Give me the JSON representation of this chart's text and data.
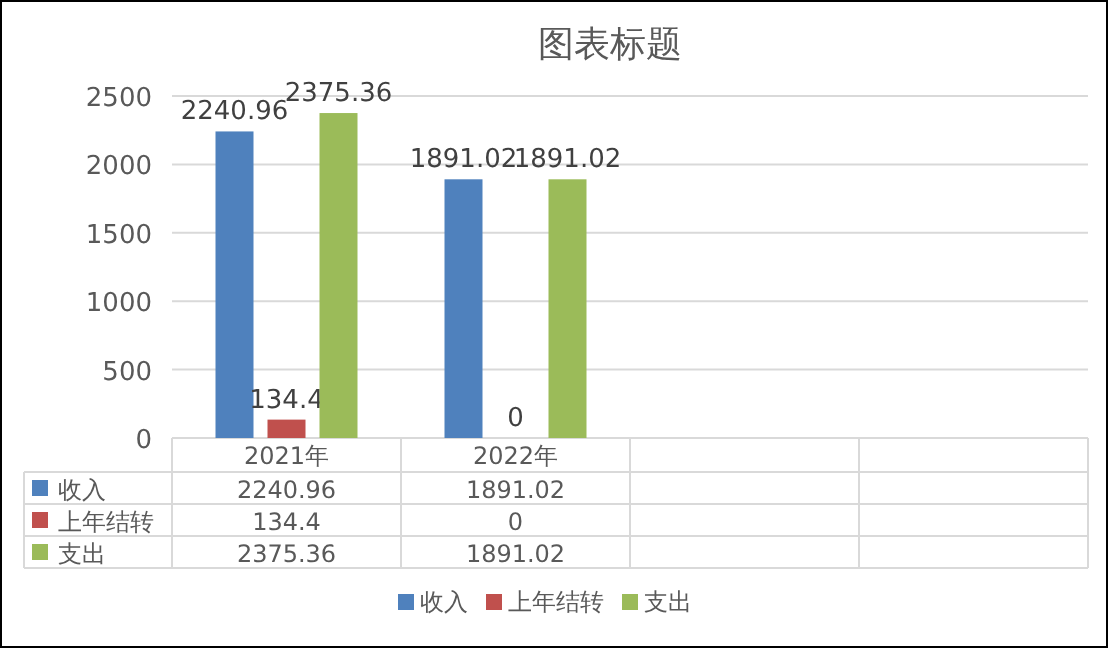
{
  "chart_data": [
    {
      "type": "bar",
      "title": "图表标题",
      "categories": [
        "2021年",
        "2022年",
        null,
        null
      ],
      "series": [
        {
          "name": "收入",
          "color": "#4f81bd",
          "values": [
            2240.96,
            1891.02,
            null,
            null
          ],
          "value_labels": [
            "2240.96",
            "1891.02",
            null,
            null
          ]
        },
        {
          "name": "上年结转",
          "color": "#c0504d",
          "values": [
            134.4,
            0,
            null,
            null
          ],
          "value_labels": [
            "134.4",
            "0",
            null,
            null
          ]
        },
        {
          "name": "支出",
          "color": "#9bbb59",
          "values": [
            2375.36,
            1891.02,
            null,
            null
          ],
          "value_labels": [
            "2375.36",
            "1891.02",
            null,
            null
          ]
        }
      ],
      "ylim": [
        0,
        2500
      ],
      "yticks": [
        0,
        500,
        1000,
        1500,
        2000,
        2500
      ],
      "grid": "y",
      "legend": "bottom"
    },
    {
      "type": "other",
      "annotations": [
        "2240.96",
        "1891.02",
        "134.4",
        "0",
        "2375.36",
        "1891.02"
      ]
    }
  ]
}
